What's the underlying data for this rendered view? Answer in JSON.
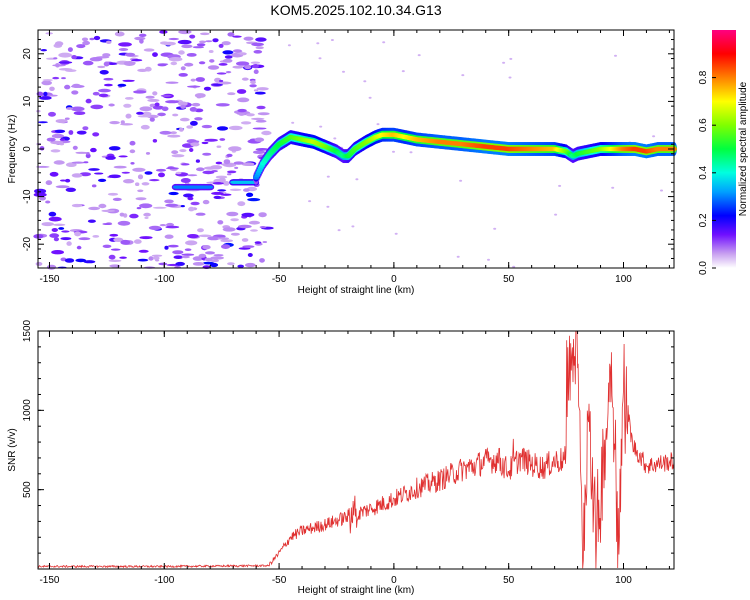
{
  "title": "KOM5.2025.102.10.34.G13",
  "chart_data": [
    {
      "type": "heatmap",
      "xlabel": "Height of straight line (km)",
      "ylabel": "Frequency (Hz)",
      "xlim": [
        -155,
        122
      ],
      "ylim": [
        -25,
        25
      ],
      "xticks": [
        -150,
        -100,
        -50,
        0,
        50,
        100
      ],
      "yticks": [
        -20,
        -10,
        0,
        10,
        20
      ],
      "colorbar": {
        "label": "Normalized spectral amplitude",
        "range": [
          0,
          1
        ],
        "ticks": [
          0.0,
          0.2,
          0.4,
          0.6,
          0.8
        ],
        "tick_labels": [
          "0.0",
          "0.2",
          "0.4",
          "0.6",
          "0.8"
        ],
        "colormap": "rainbow (white-violet-blue-cyan-green-yellow-red-magenta)"
      },
      "ridge": {
        "x": [
          -60,
          -57,
          -54,
          -50,
          -45,
          -40,
          -35,
          -30,
          -25,
          -22,
          -20,
          -17,
          -12,
          -8,
          -5,
          0,
          5,
          10,
          20,
          30,
          40,
          50,
          60,
          70,
          75,
          78,
          80,
          85,
          90,
          95,
          100,
          105,
          110,
          115,
          122
        ],
        "freq": [
          -6,
          -3,
          -1,
          1,
          2.5,
          2,
          1.5,
          0.5,
          -0.5,
          -1.5,
          -1.5,
          0,
          1.5,
          2.5,
          3,
          3,
          2.5,
          2,
          1.5,
          1,
          0.5,
          0,
          0,
          0,
          -0.5,
          -1.5,
          -1,
          -0.5,
          0,
          0,
          0,
          0,
          -0.5,
          0,
          0
        ],
        "amplitude": [
          0.3,
          0.4,
          0.45,
          0.5,
          0.55,
          0.6,
          0.65,
          0.6,
          0.5,
          0.45,
          0.5,
          0.55,
          0.6,
          0.65,
          0.7,
          0.75,
          0.7,
          0.75,
          0.8,
          0.8,
          0.85,
          0.85,
          0.8,
          0.75,
          0.6,
          0.45,
          0.5,
          0.55,
          0.6,
          0.7,
          0.8,
          0.85,
          0.85,
          0.8,
          0.8
        ]
      },
      "low_level_segments": [
        {
          "x": [
            -95,
            -80
          ],
          "freq": -8,
          "amplitude": 0.3
        },
        {
          "x": [
            -70,
            -60
          ],
          "freq": -7,
          "amplitude": 0.35
        }
      ],
      "noise_region": {
        "x": [
          -155,
          -55
        ],
        "amplitude_max": 0.2
      }
    },
    {
      "type": "line",
      "xlabel": "Height of straight line (km)",
      "ylabel": "SNR (v/v)",
      "xlim": [
        -155,
        122
      ],
      "ylim": [
        0,
        1500
      ],
      "xticks": [
        -150,
        -100,
        -50,
        0,
        50,
        100
      ],
      "yticks": [
        500,
        1000,
        1500
      ],
      "color": "#e03030",
      "envelope": {
        "x": [
          -155,
          -100,
          -55,
          -50,
          -45,
          -40,
          -30,
          -20,
          -10,
          0,
          10,
          20,
          30,
          35,
          40,
          45,
          50,
          55,
          60,
          65,
          70,
          75
        ],
        "y": [
          10,
          10,
          15,
          100,
          200,
          240,
          280,
          330,
          380,
          440,
          510,
          560,
          630,
          650,
          680,
          690,
          620,
          700,
          660,
          640,
          680,
          690
        ]
      },
      "features": [
        {
          "x": -17,
          "y": 500
        },
        {
          "x": 46,
          "y": 760
        },
        {
          "x": 52,
          "y": 820
        },
        {
          "x": 76,
          "y": 1260
        },
        {
          "x": 80,
          "y": 1500
        },
        {
          "x": 82,
          "y": 60
        },
        {
          "x": 85,
          "y": 1050
        },
        {
          "x": 88,
          "y": 130
        },
        {
          "x": 95,
          "y": 1340
        },
        {
          "x": 98,
          "y": 80
        },
        {
          "x": 100,
          "y": 1180
        },
        {
          "x": 104,
          "y": 780
        },
        {
          "x": 110,
          "y": 650
        },
        {
          "x": 122,
          "y": 680
        }
      ]
    }
  ]
}
